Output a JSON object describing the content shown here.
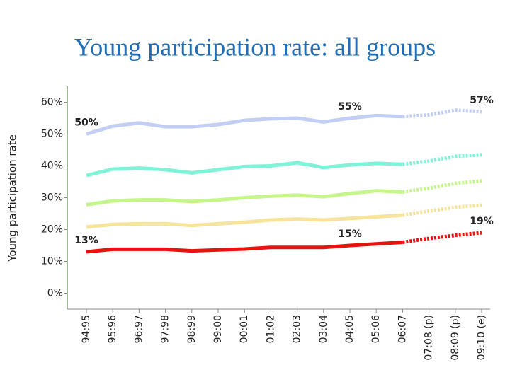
{
  "chart_data": {
    "type": "line",
    "title": "Young participation rate: all groups",
    "y_label": "Young participation rate",
    "categories": [
      "94:95",
      "95:96",
      "96:97",
      "97:98",
      "98:99",
      "99:00",
      "00:01",
      "01:02",
      "02:03",
      "03:04",
      "04:05",
      "05:06",
      "06:07",
      "07:08 (p)",
      "08:09 (p)",
      "09:10 (e)"
    ],
    "projection_start": 12,
    "series": [
      {
        "color": "#c3cef4",
        "values": [
          50,
          52.5,
          53.5,
          52.3,
          52.3,
          53,
          54.3,
          54.8,
          55,
          53.8,
          55,
          55.8,
          55.5,
          56,
          57.5,
          57
        ],
        "value_labels": [
          "50%",
          null,
          null,
          null,
          null,
          null,
          null,
          null,
          null,
          null,
          "55%",
          null,
          null,
          null,
          null,
          "57%"
        ]
      },
      {
        "color": "#7ff3d8",
        "values": [
          37,
          39,
          39.3,
          38.8,
          37.8,
          38.8,
          39.8,
          40,
          41,
          39.5,
          40.3,
          40.8,
          40.5,
          41.5,
          43,
          43.5
        ]
      },
      {
        "color": "#c6f58c",
        "values": [
          27.8,
          29,
          29.3,
          29.3,
          28.8,
          29.3,
          30,
          30.5,
          30.8,
          30.3,
          31.3,
          32.2,
          31.8,
          33,
          34.5,
          35.3
        ]
      },
      {
        "color": "#f6e49c",
        "values": [
          20.8,
          21.6,
          21.8,
          21.8,
          21.3,
          21.8,
          22.3,
          23,
          23.3,
          23,
          23.5,
          24,
          24.5,
          25.8,
          27,
          27.7
        ]
      },
      {
        "color": "#e8120f",
        "values": [
          13,
          13.8,
          13.8,
          13.8,
          13.3,
          13.6,
          13.9,
          14.4,
          14.4,
          14.4,
          15,
          15.5,
          16,
          17.2,
          18.2,
          19
        ],
        "value_labels": [
          "13%",
          null,
          null,
          null,
          null,
          null,
          null,
          null,
          null,
          null,
          "15%",
          null,
          null,
          null,
          null,
          "19%"
        ]
      }
    ],
    "ylim": [
      -5,
      65
    ],
    "yticks": [
      {
        "value": 0,
        "label": "0%"
      },
      {
        "value": 10,
        "label": "10%"
      },
      {
        "value": 20,
        "label": "20%"
      },
      {
        "value": 30,
        "label": "30%"
      },
      {
        "value": 40,
        "label": "40%"
      },
      {
        "value": 50,
        "label": "50%"
      },
      {
        "value": 60,
        "label": "60%"
      }
    ]
  }
}
